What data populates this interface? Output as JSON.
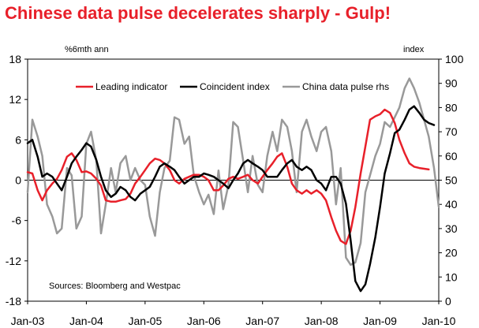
{
  "title": "Chinese data pulse decelerates sharply - Gulp!",
  "chart_data": {
    "type": "line",
    "left_axis": {
      "label": "%6mth ann",
      "ticks": [
        18,
        12,
        6,
        0,
        -6,
        -12,
        -18
      ],
      "ylim": [
        -18,
        18
      ]
    },
    "right_axis": {
      "label": "index",
      "ticks": [
        100,
        90,
        80,
        70,
        60,
        50,
        40,
        30,
        20,
        10,
        0
      ],
      "ylim": [
        0,
        100
      ]
    },
    "x_ticks": [
      "Jan-03",
      "Jan-04",
      "Jan-05",
      "Jan-06",
      "Jan-07",
      "Jan-08",
      "Jan-09",
      "Jan-10"
    ],
    "x_range": [
      2003.0,
      2010.0
    ],
    "source": "Sources: Bloomberg and Westpac",
    "legend_position": "top",
    "colors": {
      "leading": "#e8202a",
      "coincident": "#000000",
      "pulse": "#999999",
      "title": "#e8202a"
    },
    "series": [
      {
        "name": "Leading indicator",
        "axis": "left",
        "color": "#e8202a",
        "x": [
          2003.0,
          2003.08,
          2003.17,
          2003.25,
          2003.33,
          2003.42,
          2003.5,
          2003.58,
          2003.67,
          2003.75,
          2003.83,
          2003.92,
          2004.0,
          2004.08,
          2004.17,
          2004.25,
          2004.33,
          2004.42,
          2004.5,
          2004.58,
          2004.67,
          2004.75,
          2004.83,
          2004.92,
          2005.0,
          2005.08,
          2005.17,
          2005.25,
          2005.33,
          2005.42,
          2005.5,
          2005.58,
          2005.67,
          2005.75,
          2005.83,
          2005.92,
          2006.0,
          2006.08,
          2006.17,
          2006.25,
          2006.33,
          2006.42,
          2006.5,
          2006.58,
          2006.67,
          2006.75,
          2006.83,
          2006.92,
          2007.0,
          2007.08,
          2007.17,
          2007.25,
          2007.33,
          2007.42,
          2007.5,
          2007.58,
          2007.67,
          2007.75,
          2007.83,
          2007.92,
          2008.0,
          2008.08,
          2008.17,
          2008.25,
          2008.33,
          2008.42,
          2008.5,
          2008.58,
          2008.67,
          2008.75,
          2008.83,
          2008.92,
          2009.0,
          2009.08,
          2009.17,
          2009.25,
          2009.33,
          2009.42,
          2009.5,
          2009.58,
          2009.67,
          2009.75,
          2009.83
        ],
        "values": [
          1.2,
          1.0,
          -1.5,
          -3.0,
          -1.5,
          -0.5,
          0.2,
          1.5,
          3.5,
          4.0,
          3.0,
          1.2,
          1.3,
          1.0,
          0.2,
          -0.8,
          -3.0,
          -3.2,
          -3.2,
          -3.0,
          -2.8,
          -2.0,
          -0.5,
          0.5,
          1.5,
          2.5,
          3.2,
          3.0,
          2.5,
          1.5,
          0.0,
          -0.5,
          0.2,
          0.5,
          0.8,
          0.8,
          0.5,
          0.0,
          -1.5,
          -1.5,
          -0.8,
          0.2,
          0.5,
          0.2,
          0.5,
          0.8,
          0.0,
          -0.5,
          0.5,
          1.5,
          2.5,
          3.5,
          4.0,
          2.0,
          -0.5,
          -1.5,
          -2.0,
          -1.5,
          -2.0,
          -1.5,
          -2.0,
          -3.0,
          -5.5,
          -7.5,
          -9.0,
          -9.5,
          -7.5,
          -4.0,
          1.0,
          5.0,
          9.0,
          9.5,
          9.8,
          10.5,
          10.0,
          8.5,
          6.0,
          4.0,
          2.5,
          2.0,
          1.8,
          1.7,
          1.6
        ]
      },
      {
        "name": "Coincident index",
        "axis": "left",
        "color": "#000000",
        "x": [
          2003.0,
          2003.08,
          2003.17,
          2003.25,
          2003.33,
          2003.42,
          2003.5,
          2003.58,
          2003.67,
          2003.75,
          2003.83,
          2003.92,
          2004.0,
          2004.08,
          2004.17,
          2004.25,
          2004.33,
          2004.42,
          2004.5,
          2004.58,
          2004.67,
          2004.75,
          2004.83,
          2004.92,
          2005.0,
          2005.08,
          2005.17,
          2005.25,
          2005.33,
          2005.42,
          2005.5,
          2005.58,
          2005.67,
          2005.75,
          2005.83,
          2005.92,
          2006.0,
          2006.08,
          2006.17,
          2006.25,
          2006.33,
          2006.42,
          2006.5,
          2006.58,
          2006.67,
          2006.75,
          2006.83,
          2006.92,
          2007.0,
          2007.08,
          2007.17,
          2007.25,
          2007.33,
          2007.42,
          2007.5,
          2007.58,
          2007.67,
          2007.75,
          2007.83,
          2007.92,
          2008.0,
          2008.08,
          2008.17,
          2008.25,
          2008.33,
          2008.42,
          2008.5,
          2008.58,
          2008.67,
          2008.75,
          2008.83,
          2008.92,
          2009.0,
          2009.08,
          2009.17,
          2009.25,
          2009.33,
          2009.42,
          2009.5,
          2009.58,
          2009.67,
          2009.75,
          2009.83,
          2009.92
        ],
        "values": [
          5.5,
          6.0,
          3.5,
          0.5,
          1.0,
          0.5,
          -0.5,
          -1.5,
          0.5,
          2.5,
          3.5,
          4.5,
          5.5,
          5.0,
          3.0,
          0.5,
          -1.5,
          -2.5,
          -2.0,
          -1.0,
          -1.5,
          -2.5,
          -3.0,
          -2.0,
          -1.5,
          -1.0,
          0.5,
          2.0,
          2.5,
          2.0,
          1.5,
          0.5,
          -0.5,
          0.0,
          0.5,
          0.5,
          1.0,
          0.8,
          0.5,
          0.0,
          -0.5,
          -1.2,
          0.0,
          1.0,
          2.5,
          3.0,
          2.5,
          2.0,
          1.5,
          0.5,
          0.5,
          0.5,
          1.5,
          2.5,
          3.0,
          2.0,
          1.5,
          2.0,
          1.5,
          0.0,
          -0.5,
          -1.5,
          0.5,
          0.5,
          -0.5,
          -3.5,
          -9.0,
          -15.0,
          -16.5,
          -15.5,
          -12.5,
          -8.5,
          -4.0,
          1.0,
          4.0,
          7.0,
          7.5,
          9.0,
          10.5,
          11.0,
          10.0,
          9.0,
          8.5,
          8.2
        ]
      },
      {
        "name": "China data pulse rhs",
        "axis": "right",
        "color": "#999999",
        "x": [
          2003.0,
          2003.08,
          2003.17,
          2003.25,
          2003.33,
          2003.42,
          2003.5,
          2003.58,
          2003.67,
          2003.75,
          2003.83,
          2003.92,
          2004.0,
          2004.08,
          2004.17,
          2004.25,
          2004.33,
          2004.42,
          2004.5,
          2004.58,
          2004.67,
          2004.75,
          2004.83,
          2004.92,
          2005.0,
          2005.08,
          2005.17,
          2005.25,
          2005.33,
          2005.42,
          2005.5,
          2005.58,
          2005.67,
          2005.75,
          2005.83,
          2005.92,
          2006.0,
          2006.08,
          2006.17,
          2006.25,
          2006.33,
          2006.42,
          2006.5,
          2006.58,
          2006.67,
          2006.75,
          2006.83,
          2006.92,
          2007.0,
          2007.08,
          2007.17,
          2007.25,
          2007.33,
          2007.42,
          2007.5,
          2007.58,
          2007.67,
          2007.75,
          2007.83,
          2007.92,
          2008.0,
          2008.08,
          2008.17,
          2008.25,
          2008.33,
          2008.42,
          2008.5,
          2008.58,
          2008.67,
          2008.75,
          2008.83,
          2008.92,
          2009.0,
          2009.08,
          2009.17,
          2009.25,
          2009.33,
          2009.42,
          2009.5,
          2009.58,
          2009.67,
          2009.75,
          2009.83,
          2009.92,
          2010.0
        ],
        "values": [
          45,
          75,
          68,
          60,
          40,
          35,
          28,
          30,
          55,
          52,
          30,
          35,
          65,
          70,
          58,
          28,
          40,
          55,
          45,
          57,
          60,
          50,
          55,
          50,
          48,
          35,
          27,
          45,
          55,
          58,
          76,
          75,
          65,
          68,
          52,
          45,
          40,
          44,
          36,
          54,
          38,
          48,
          74,
          72,
          58,
          45,
          60,
          48,
          45,
          60,
          70,
          62,
          75,
          72,
          62,
          45,
          70,
          75,
          68,
          62,
          70,
          72,
          62,
          40,
          55,
          18,
          15,
          16,
          24,
          45,
          52,
          60,
          65,
          74,
          72,
          76,
          80,
          88,
          92,
          88,
          82,
          75,
          68,
          55,
          39
        ]
      }
    ]
  }
}
